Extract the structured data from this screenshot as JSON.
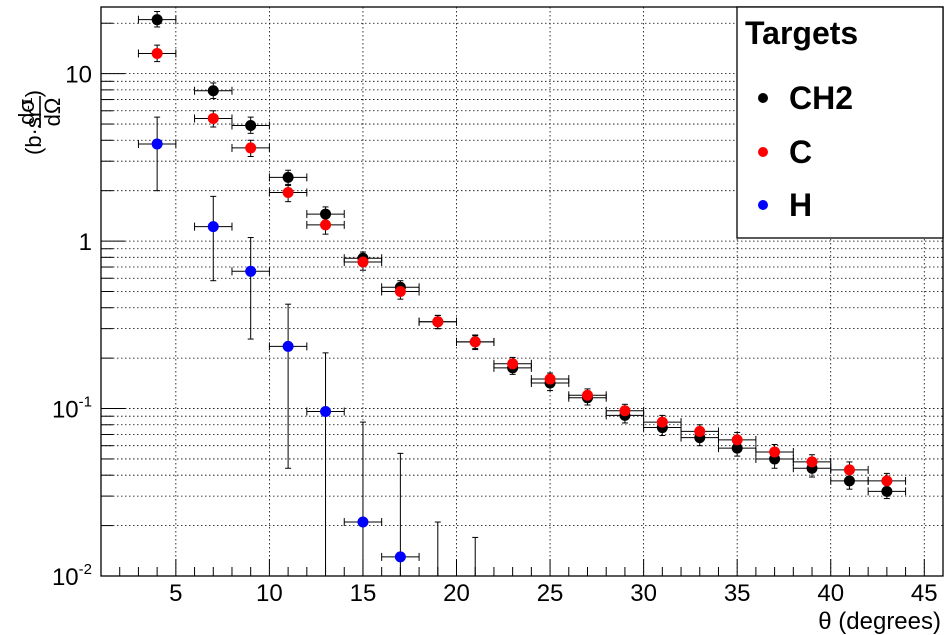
{
  "chart_data": {
    "type": "scatter",
    "xlabel": "θ (degrees)",
    "ylabel": {
      "main": "dσ/dΩ",
      "frac_num": "dσ",
      "frac_den": "dΩ",
      "unit_open": "(b·sr",
      "unit_exp": "-1",
      "unit_close": ")"
    },
    "xlim": [
      1,
      46
    ],
    "ylim": [
      0.01,
      25
    ],
    "yscale": "log",
    "grid": true,
    "legend_placement": "top-right",
    "legend_title": "Targets",
    "x_ticks": [
      "5",
      "10",
      "15",
      "20",
      "25",
      "30",
      "35",
      "40",
      "45"
    ],
    "y_ticks": [
      {
        "value": 10,
        "base": "10",
        "exp": ""
      },
      {
        "value": 1,
        "base": "1",
        "exp": ""
      },
      {
        "value": 0.1,
        "base": "10",
        "exp": "-1"
      },
      {
        "value": 0.01,
        "base": "10",
        "exp": "-2"
      }
    ],
    "series": [
      {
        "name": "CH2",
        "color": "#000000",
        "x": [
          4,
          7,
          9,
          11,
          13,
          15,
          17,
          19,
          21,
          23,
          25,
          27,
          29,
          31,
          33,
          35,
          37,
          39,
          41,
          43
        ],
        "xerr": 1,
        "y": [
          21,
          7.9,
          4.9,
          2.4,
          1.45,
          0.79,
          0.53,
          0.33,
          0.25,
          0.175,
          0.142,
          0.116,
          0.091,
          0.077,
          0.067,
          0.058,
          0.05,
          0.044,
          0.037,
          0.032
        ],
        "ylow": [
          19,
          7.1,
          4.4,
          2.15,
          1.3,
          0.72,
          0.48,
          0.3,
          0.225,
          0.16,
          0.128,
          0.105,
          0.082,
          0.069,
          0.06,
          0.052,
          0.044,
          0.039,
          0.033,
          0.029
        ],
        "yhigh": [
          23.5,
          8.8,
          5.5,
          2.65,
          1.6,
          0.86,
          0.58,
          0.36,
          0.275,
          0.19,
          0.156,
          0.127,
          0.1,
          0.085,
          0.074,
          0.064,
          0.056,
          0.049,
          0.041,
          0.035
        ]
      },
      {
        "name": "C",
        "color": "#ff0000",
        "x": [
          4,
          7,
          9,
          11,
          13,
          15,
          17,
          19,
          21,
          23,
          25,
          27,
          29,
          31,
          33,
          35,
          37,
          39,
          41,
          43
        ],
        "xerr": 1,
        "y": [
          13.2,
          5.4,
          3.6,
          1.95,
          1.25,
          0.75,
          0.5,
          0.33,
          0.25,
          0.185,
          0.15,
          0.12,
          0.097,
          0.083,
          0.073,
          0.065,
          0.055,
          0.048,
          0.043,
          0.037
        ],
        "ylow": [
          11.8,
          4.8,
          3.2,
          1.72,
          1.1,
          0.67,
          0.45,
          0.3,
          0.228,
          0.168,
          0.137,
          0.109,
          0.088,
          0.075,
          0.066,
          0.058,
          0.049,
          0.043,
          0.038,
          0.033
        ],
        "yhigh": [
          14.8,
          6.0,
          4.0,
          2.18,
          1.4,
          0.83,
          0.55,
          0.36,
          0.272,
          0.202,
          0.163,
          0.131,
          0.106,
          0.091,
          0.08,
          0.072,
          0.061,
          0.053,
          0.048,
          0.041
        ]
      },
      {
        "name": "H",
        "color": "#0000ff",
        "x": [
          4,
          7,
          9,
          11,
          13,
          15,
          17
        ],
        "xerr": 1,
        "y": [
          3.8,
          1.22,
          0.66,
          0.235,
          0.096,
          0.021,
          0.013
        ],
        "ylow": [
          2.0,
          0.58,
          0.26,
          0.044,
          0.01,
          0.01,
          0.01
        ],
        "yhigh": [
          5.5,
          1.85,
          1.05,
          0.42,
          0.215,
          0.083,
          0.054
        ]
      }
    ],
    "bare_error_bars": [
      {
        "x": 19,
        "ylow": 0.01,
        "yhigh": 0.021
      },
      {
        "x": 21,
        "ylow": 0.01,
        "yhigh": 0.017
      }
    ]
  }
}
